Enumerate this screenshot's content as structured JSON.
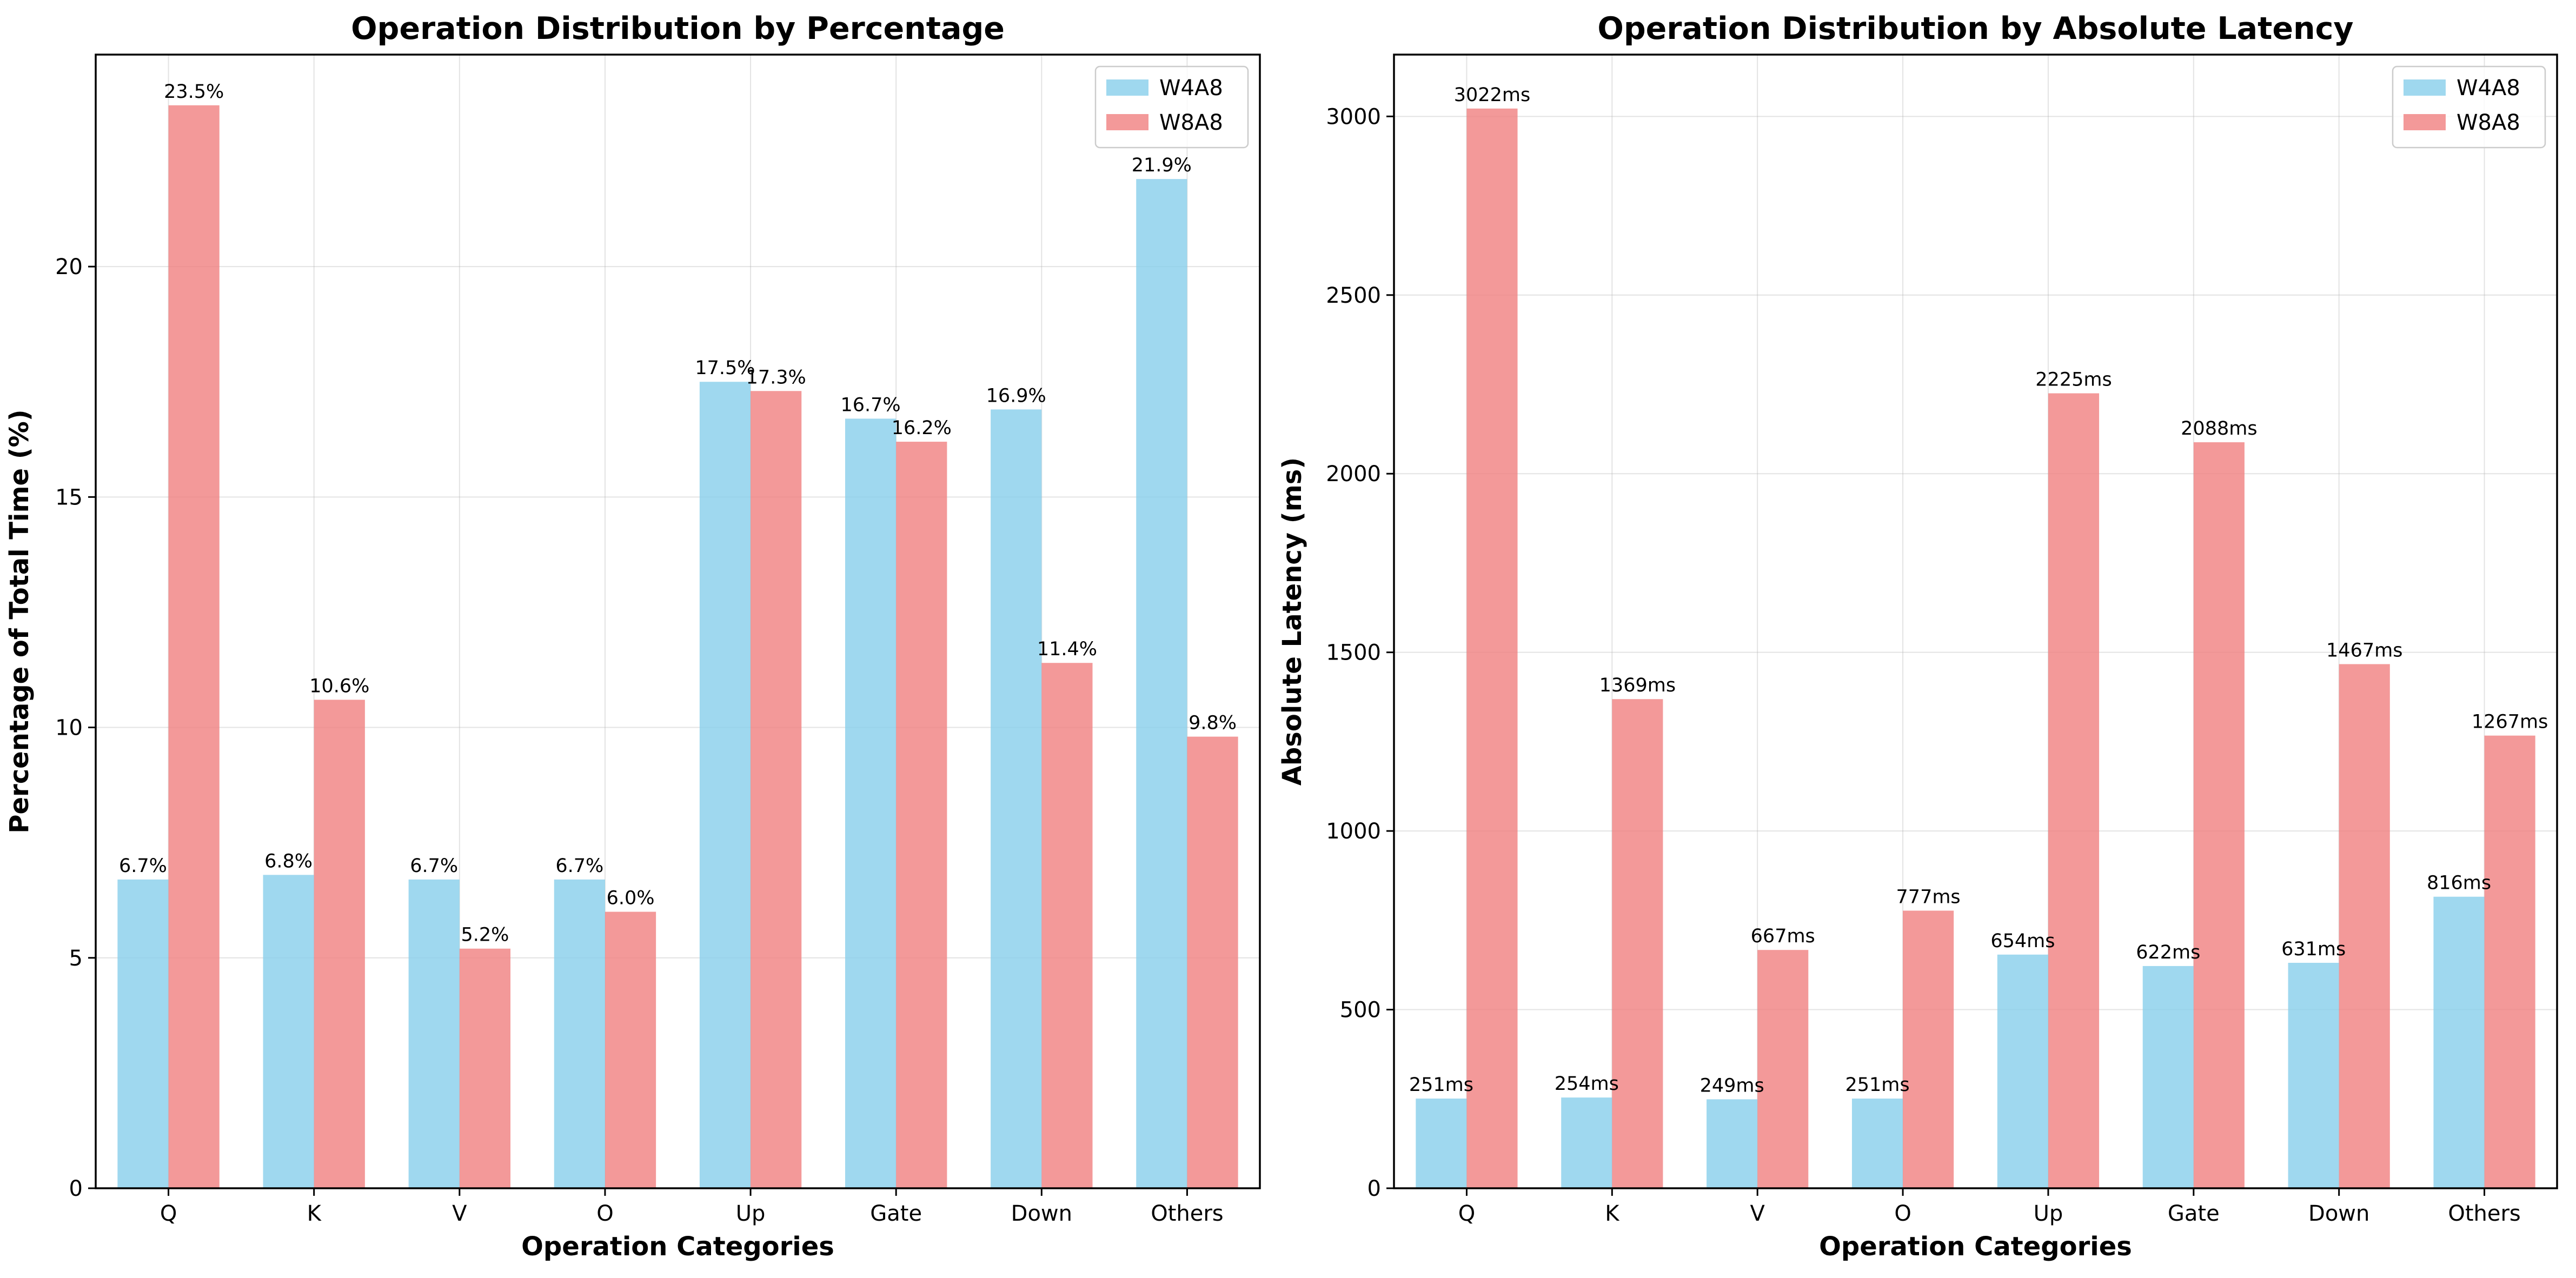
{
  "colors": {
    "w4a8": "#87CEEB",
    "w8a8": "#F08080"
  },
  "chart_data": [
    {
      "type": "bar",
      "title": "Operation Distribution by Percentage",
      "xlabel": "Operation Categories",
      "ylabel": "Percentage of Total Time (%)",
      "categories": [
        "Q",
        "K",
        "V",
        "O",
        "Up",
        "Gate",
        "Down",
        "Others"
      ],
      "series": [
        {
          "name": "W4A8",
          "values": [
            6.7,
            6.8,
            6.7,
            6.7,
            17.5,
            16.7,
            16.9,
            21.9
          ],
          "labels": [
            "6.7%",
            "6.8%",
            "6.7%",
            "6.7%",
            "17.5%",
            "16.7%",
            "16.9%",
            "21.9%"
          ]
        },
        {
          "name": "W8A8",
          "values": [
            23.5,
            10.6,
            5.2,
            6.0,
            17.3,
            16.2,
            11.4,
            9.8
          ],
          "labels": [
            "23.5%",
            "10.6%",
            "5.2%",
            "6.0%",
            "17.3%",
            "16.2%",
            "11.4%",
            "9.8%"
          ]
        }
      ],
      "ylim": [
        0,
        24.6
      ],
      "yticks": [
        0,
        5,
        10,
        15,
        20
      ],
      "grid": true,
      "legend": "top-right"
    },
    {
      "type": "bar",
      "title": "Operation Distribution by Absolute Latency",
      "xlabel": "Operation Categories",
      "ylabel": "Absolute Latency (ms)",
      "categories": [
        "Q",
        "K",
        "V",
        "O",
        "Up",
        "Gate",
        "Down",
        "Others"
      ],
      "series": [
        {
          "name": "W4A8",
          "values": [
            251,
            254,
            249,
            251,
            654,
            622,
            631,
            816
          ],
          "labels": [
            "251ms",
            "254ms",
            "249ms",
            "251ms",
            "654ms",
            "622ms",
            "631ms",
            "816ms"
          ]
        },
        {
          "name": "W8A8",
          "values": [
            3022,
            1369,
            667,
            777,
            2225,
            2088,
            1467,
            1267
          ],
          "labels": [
            "3022ms",
            "1369ms",
            "667ms",
            "777ms",
            "2225ms",
            "2088ms",
            "1467ms",
            "1267ms"
          ]
        }
      ],
      "ylim": [
        0,
        3173
      ],
      "yticks": [
        0,
        500,
        1000,
        1500,
        2000,
        2500,
        3000
      ],
      "grid": true,
      "legend": "top-right"
    }
  ]
}
